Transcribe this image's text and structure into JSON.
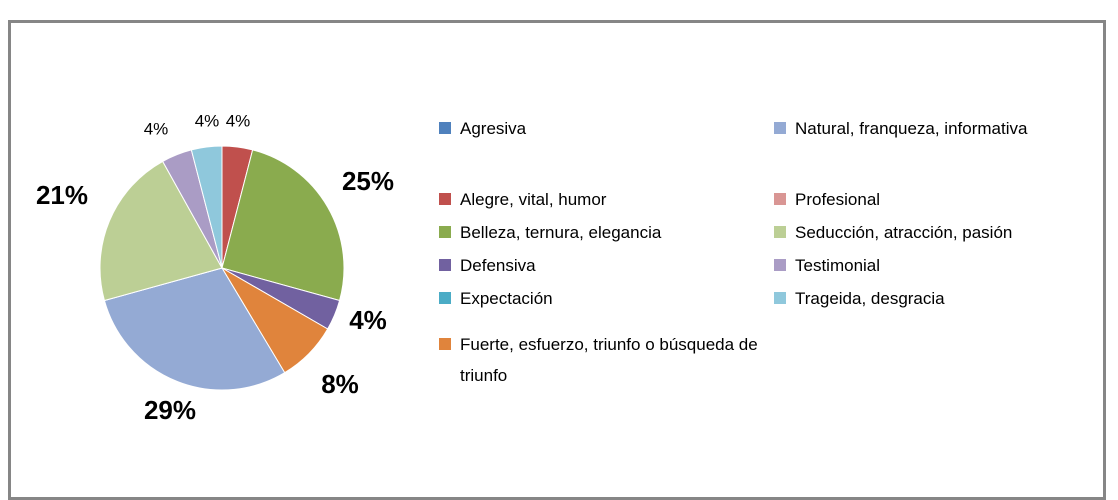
{
  "chart_data": {
    "type": "pie",
    "categories": [
      "Agresiva",
      "Alegre, vital, humor",
      "Belleza, ternura, elegancia",
      "Defensiva",
      "Expectación",
      "Fuerte, esfuerzo, triunfo o búsqueda de triunfo",
      "Natural, franqueza, informativa",
      "Profesional",
      "Seducción, atracción, pasión",
      "Testimonial",
      "Trageida, desgracia"
    ],
    "values": [
      0,
      4,
      25,
      4,
      0,
      8,
      29,
      0,
      21,
      4,
      4
    ],
    "value_labels": [
      null,
      "4%",
      "25%",
      "4%",
      null,
      "8%",
      "29%",
      null,
      "21%",
      "4%",
      "4%"
    ],
    "colors": [
      "#4f81bd",
      "#c0504d",
      "#8aab4e",
      "#7161a0",
      "#4bacc6",
      "#e0843c",
      "#94aad4",
      "#d99694",
      "#bccf95",
      "#aa9cc5",
      "#8fc8dc"
    ]
  }
}
